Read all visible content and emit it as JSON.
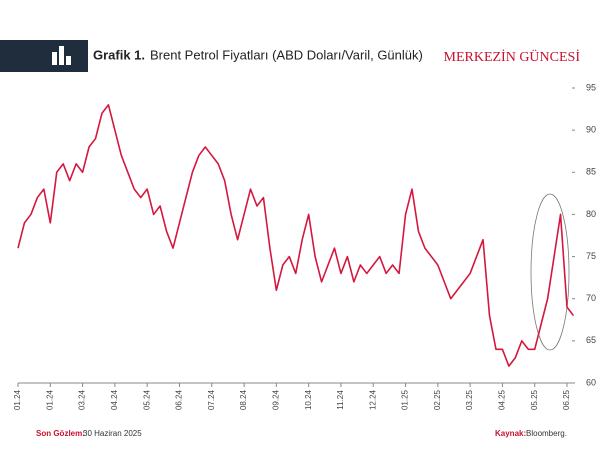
{
  "header": {
    "label": "Grafik 1.",
    "brand": "MERKEZİN GÜNCESİ"
  },
  "footer": {
    "obs_label": "Son Gözlem:",
    "obs_value": "30 Haziran 2025",
    "source_label": "Kaynak:",
    "source_value": "Bloomberg."
  },
  "chart_data": {
    "type": "line",
    "title": "Brent Petrol Fiyatları (ABD Doları/Varil, Günlük)",
    "categories": [
      "01.24",
      null,
      null,
      null,
      null,
      "01.24",
      null,
      null,
      null,
      null,
      "03.24",
      null,
      null,
      null,
      null,
      "04.24",
      null,
      null,
      null,
      null,
      "05.24",
      null,
      null,
      null,
      null,
      "06.24",
      null,
      null,
      null,
      null,
      "07.24",
      null,
      null,
      null,
      null,
      "08.24",
      null,
      null,
      null,
      null,
      "09.24",
      null,
      null,
      null,
      null,
      "10.24",
      null,
      null,
      null,
      null,
      "11.24",
      null,
      null,
      null,
      null,
      "12.24",
      null,
      null,
      null,
      null,
      "01.25",
      null,
      null,
      null,
      null,
      "02.25",
      null,
      null,
      null,
      null,
      "03.25",
      null,
      null,
      null,
      null,
      "04.25",
      null,
      null,
      null,
      null,
      "05.25",
      null,
      null,
      null,
      null,
      "06.25",
      null
    ],
    "series": [
      {
        "name": "Brent",
        "color": "#d5173f",
        "values": [
          76,
          79,
          80,
          82,
          83,
          79,
          85,
          86,
          84,
          86,
          85,
          88,
          89,
          92,
          93,
          90,
          87,
          85,
          83,
          82,
          83,
          80,
          81,
          78,
          76,
          79,
          82,
          85,
          87,
          88,
          87,
          86,
          84,
          80,
          77,
          80,
          83,
          81,
          82,
          76,
          71,
          74,
          75,
          73,
          77,
          80,
          75,
          72,
          74,
          76,
          73,
          75,
          72,
          74,
          73,
          74,
          75,
          73,
          74,
          73,
          80,
          83,
          78,
          76,
          75,
          74,
          72,
          70,
          71,
          72,
          73,
          75,
          77,
          68,
          64,
          64,
          62,
          63,
          65,
          64,
          64,
          67,
          70,
          75,
          80,
          69,
          68
        ]
      }
    ],
    "ylim": [
      60,
      95
    ],
    "yticks": [
      60,
      65,
      70,
      75,
      80,
      85,
      90,
      95
    ],
    "grid": false
  }
}
